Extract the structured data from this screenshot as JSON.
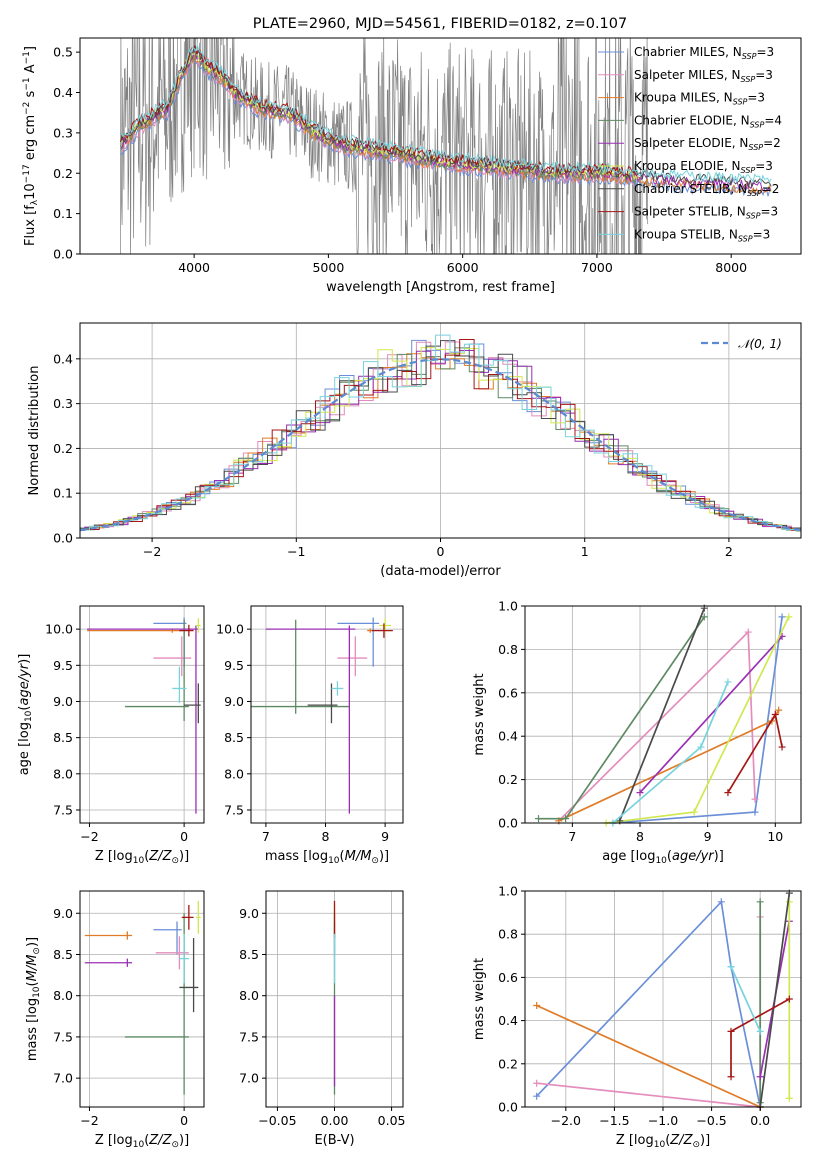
{
  "title": "PLATE=2960, MJD=54561, FIBERID=0182, z=0.107",
  "models": [
    {
      "name": "Chabrier MILES, N$_{SSP}$=3",
      "label": "Chabrier MILES, N",
      "nssp": "=3",
      "color": "#6a8fd8"
    },
    {
      "name": "Salpeter MILES, N$_{SSP}$=3",
      "label": "Salpeter MILES, N",
      "nssp": "=3",
      "color": "#e48cbc"
    },
    {
      "name": "Kroupa MILES, N$_{SSP}$=3",
      "label": "Kroupa MILES, N",
      "nssp": "=3",
      "color": "#e07b27"
    },
    {
      "name": "Chabrier ELODIE, N$_{SSP}$=4",
      "label": "Chabrier ELODIE, N",
      "nssp": "=4",
      "color": "#5d8a62"
    },
    {
      "name": "Salpeter ELODIE, N$_{SSP}$=2",
      "label": "Salpeter ELODIE, N",
      "nssp": "=2",
      "color": "#9a2fb4"
    },
    {
      "name": "Kroupa ELODIE, N$_{SSP}$=3",
      "label": "Kroupa ELODIE, N",
      "nssp": "=3",
      "color": "#cfe84e"
    },
    {
      "name": "Chabrier STELIB, N$_{SSP}$=2",
      "label": "Chabrier STELIB, N",
      "nssp": "=2",
      "color": "#4a4a4a"
    },
    {
      "name": "Salpeter STELIB, N$_{SSP}$=3",
      "label": "Salpeter STELIB, N",
      "nssp": "=3",
      "color": "#a51616"
    },
    {
      "name": "Kroupa STELIB, N$_{SSP}$=3",
      "label": "Kroupa STELIB, N",
      "nssp": "=3",
      "color": "#78d3dd"
    }
  ],
  "chart_data": [
    {
      "id": "spectrum",
      "type": "line",
      "xlabel": "wavelength [Angstrom, rest frame]",
      "ylabel": "Flux [f",
      "xlim": [
        3150,
        8520
      ],
      "ylim": [
        0,
        0.535
      ],
      "xticks": [
        4000,
        5000,
        6000,
        7000,
        8000
      ],
      "yticks": [
        0,
        0.1,
        0.2,
        0.3,
        0.4,
        0.5
      ],
      "ytick_labels": [
        "0.0",
        "0.1",
        "0.2",
        "0.3",
        "0.4",
        "0.5"
      ],
      "grid": false,
      "legend": "top-right",
      "data_color": "#808080",
      "model_x": [
        3450,
        3600,
        3700,
        3800,
        3900,
        4000,
        4100,
        4200,
        4300,
        4500,
        4700,
        4900,
        5100,
        5300,
        5500,
        5800,
        6100,
        6400,
        6700,
        7000,
        7300,
        7600,
        7900,
        8200,
        8300
      ],
      "model_y": [
        0.27,
        0.32,
        0.34,
        0.36,
        0.44,
        0.5,
        0.46,
        0.44,
        0.4,
        0.36,
        0.35,
        0.3,
        0.27,
        0.26,
        0.25,
        0.23,
        0.22,
        0.21,
        0.2,
        0.2,
        0.19,
        0.18,
        0.175,
        0.17,
        0.165
      ]
    },
    {
      "id": "residuals",
      "type": "histogram",
      "xlabel": "(data-model)/error",
      "ylabel": "Normed distribution",
      "xlim": [
        -2.5,
        2.5
      ],
      "ylim": [
        0,
        0.48
      ],
      "xticks": [
        -2,
        -1,
        0,
        1,
        2
      ],
      "xtick_labels": [
        "−2",
        "−1",
        "0",
        "1",
        "2"
      ],
      "yticks": [
        0,
        0.1,
        0.2,
        0.3,
        0.4
      ],
      "ytick_labels": [
        "0.0",
        "0.1",
        "0.2",
        "0.3",
        "0.4"
      ],
      "grid": true,
      "legend": "top-right",
      "reference": {
        "name": "𝒩(0, 1)",
        "color": "#5b8bd0",
        "mean": 0,
        "sigma": 1
      },
      "bin_width": 0.1
    },
    {
      "id": "age-vs-Z",
      "type": "errorbar",
      "xlabel": "Z [log",
      "ylabel": "age  [log",
      "xlim": [
        -2.2,
        0.42
      ],
      "ylim": [
        7.32,
        10.32
      ],
      "xticks": [
        -2,
        0
      ],
      "xtick_labels": [
        "−2",
        "0"
      ],
      "yticks": [
        7.5,
        8,
        8.5,
        9,
        9.5,
        10
      ],
      "ytick_labels": [
        "7.5",
        "8.0",
        "8.5",
        "9.0",
        "9.5",
        "10.0"
      ],
      "grid": true,
      "points": [
        {
          "model": 0,
          "x": 0.0,
          "xerr": [
            0.65,
            0.05
          ],
          "y": 10.08,
          "yerr": [
            0.6,
            0.08
          ]
        },
        {
          "model": 1,
          "x": -0.05,
          "xerr": [
            0.6,
            0.2
          ],
          "y": 9.6,
          "yerr": [
            0.25,
            0.3
          ]
        },
        {
          "model": 2,
          "x": -0.25,
          "xerr": [
            1.8,
            0.2
          ],
          "y": 9.98,
          "yerr": [
            0.03,
            0.03
          ]
        },
        {
          "model": 3,
          "x": 0.0,
          "xerr": [
            1.25,
            0.1
          ],
          "y": 8.93,
          "yerr": [
            0.2,
            1.2
          ]
        },
        {
          "model": 4,
          "x": 0.25,
          "xerr": [
            2.3,
            0.05
          ],
          "y": 10.0,
          "yerr": [
            2.55,
            0.05
          ]
        },
        {
          "model": 5,
          "x": 0.3,
          "xerr": [
            0.05,
            0.05
          ],
          "y": 10.05,
          "yerr": [
            0.1,
            0.1
          ]
        },
        {
          "model": 6,
          "x": 0.3,
          "xerr": [
            0.3,
            0.05
          ],
          "y": 8.95,
          "yerr": [
            0.25,
            0.3
          ]
        },
        {
          "model": 7,
          "x": 0.1,
          "xerr": [
            0.2,
            0.1
          ],
          "y": 9.98,
          "yerr": [
            0.08,
            0.08
          ]
        },
        {
          "model": 8,
          "x": -0.1,
          "xerr": [
            0.15,
            0.15
          ],
          "y": 9.18,
          "yerr": [
            0.2,
            0.3
          ]
        }
      ]
    },
    {
      "id": "age-vs-mass",
      "type": "errorbar",
      "xlabel": "mass [log",
      "ylabel": "",
      "xlim": [
        6.75,
        9.3
      ],
      "ylim": [
        7.32,
        10.32
      ],
      "xticks": [
        7,
        8,
        9
      ],
      "xtick_labels": [
        "7",
        "8",
        "9"
      ],
      "yticks": [
        7.5,
        8,
        8.5,
        9,
        9.5,
        10
      ],
      "ytick_labels": [
        "7.5",
        "8.0",
        "8.5",
        "9.0",
        "9.5",
        "10.0"
      ],
      "grid": true,
      "points": [
        {
          "model": 0,
          "x": 8.8,
          "xerr": [
            0.6,
            0.1
          ],
          "y": 10.08,
          "yerr": [
            0.6,
            0.08
          ]
        },
        {
          "model": 1,
          "x": 8.5,
          "xerr": [
            0.3,
            0.2
          ],
          "y": 9.6,
          "yerr": [
            0.25,
            0.3
          ]
        },
        {
          "model": 2,
          "x": 8.75,
          "xerr": [
            0.05,
            0.05
          ],
          "y": 9.98,
          "yerr": [
            0.03,
            0.03
          ]
        },
        {
          "model": 3,
          "x": 7.5,
          "xerr": [
            0.75,
            0.9
          ],
          "y": 8.93,
          "yerr": [
            0.1,
            1.2
          ]
        },
        {
          "model": 4,
          "x": 8.4,
          "xerr": [
            1.4,
            0.1
          ],
          "y": 10.0,
          "yerr": [
            2.55,
            0.05
          ]
        },
        {
          "model": 5,
          "x": 9.0,
          "xerr": [
            0.1,
            0.1
          ],
          "y": 10.05,
          "yerr": [
            0.1,
            0.1
          ]
        },
        {
          "model": 6,
          "x": 8.1,
          "xerr": [
            0.4,
            0.1
          ],
          "y": 8.95,
          "yerr": [
            0.25,
            0.3
          ]
        },
        {
          "model": 7,
          "x": 8.98,
          "xerr": [
            0.2,
            0.15
          ],
          "y": 9.98,
          "yerr": [
            0.1,
            0.1
          ]
        },
        {
          "model": 8,
          "x": 8.2,
          "xerr": [
            0.1,
            0.1
          ],
          "y": 9.18,
          "yerr": [
            0.1,
            0.1
          ]
        }
      ]
    },
    {
      "id": "weight-vs-age",
      "type": "line",
      "xlabel": "age  [log",
      "ylabel": "mass weight",
      "xlim": [
        6.3,
        10.38
      ],
      "ylim": [
        0,
        1.0
      ],
      "xticks": [
        7,
        8,
        9,
        10
      ],
      "xtick_labels": [
        "7",
        "8",
        "9",
        "10"
      ],
      "yticks": [
        0,
        0.2,
        0.4,
        0.6,
        0.8,
        1.0
      ],
      "ytick_labels": [
        "0.0",
        "0.2",
        "0.4",
        "0.6",
        "0.8",
        "1.0"
      ],
      "grid": true,
      "series": [
        {
          "model": 0,
          "x": [
            7.6,
            9.7,
            10.1
          ],
          "y": [
            0.0,
            0.05,
            0.95
          ]
        },
        {
          "model": 1,
          "x": [
            6.8,
            9.6,
            9.7
          ],
          "y": [
            0.01,
            0.88,
            0.11
          ]
        },
        {
          "model": 2,
          "x": [
            6.8,
            9.95,
            10.05
          ],
          "y": [
            0.01,
            0.47,
            0.52
          ]
        },
        {
          "model": 3,
          "x": [
            6.5,
            6.9,
            8.95
          ],
          "y": [
            0.02,
            0.02,
            0.95
          ]
        },
        {
          "model": 4,
          "x": [
            8.0,
            10.1
          ],
          "y": [
            0.14,
            0.86
          ]
        },
        {
          "model": 5,
          "x": [
            7.5,
            8.8,
            10.2
          ],
          "y": [
            0.0,
            0.05,
            0.95
          ]
        },
        {
          "model": 6,
          "x": [
            7.7,
            8.95
          ],
          "y": [
            0.01,
            0.99
          ]
        },
        {
          "model": 7,
          "x": [
            9.3,
            10.0,
            10.1
          ],
          "y": [
            0.14,
            0.5,
            0.35
          ]
        },
        {
          "model": 8,
          "x": [
            7.6,
            8.9,
            9.3
          ],
          "y": [
            0.0,
            0.35,
            0.65
          ]
        }
      ]
    },
    {
      "id": "mass-vs-Z",
      "type": "errorbar",
      "xlabel": "Z [log",
      "ylabel": "mass [log",
      "xlim": [
        -2.2,
        0.42
      ],
      "ylim": [
        6.65,
        9.27
      ],
      "xticks": [
        -2,
        0
      ],
      "xtick_labels": [
        "−2",
        "0"
      ],
      "yticks": [
        7.0,
        7.5,
        8.0,
        8.5,
        9.0
      ],
      "ytick_labels": [
        "7.0",
        "7.5",
        "8.0",
        "8.5",
        "9.0"
      ],
      "grid": true,
      "points": [
        {
          "model": 0,
          "x": -0.15,
          "xerr": [
            0.5,
            0.1
          ],
          "y": 8.8,
          "yerr": [
            0.3,
            0.1
          ]
        },
        {
          "model": 1,
          "x": -0.1,
          "xerr": [
            0.5,
            0.2
          ],
          "y": 8.52,
          "yerr": [
            0.2,
            0.2
          ]
        },
        {
          "model": 2,
          "x": -1.2,
          "xerr": [
            0.9,
            0.1
          ],
          "y": 8.73,
          "yerr": [
            0.05,
            0.05
          ]
        },
        {
          "model": 3,
          "x": 0.0,
          "xerr": [
            1.25,
            0.1
          ],
          "y": 7.5,
          "yerr": [
            0.7,
            1.5
          ]
        },
        {
          "model": 4,
          "x": -1.2,
          "xerr": [
            0.9,
            0.1
          ],
          "y": 8.4,
          "yerr": [
            0.05,
            0.05
          ]
        },
        {
          "model": 5,
          "x": 0.3,
          "xerr": [
            0.05,
            0.05
          ],
          "y": 8.95,
          "yerr": [
            0.2,
            0.2
          ]
        },
        {
          "model": 6,
          "x": 0.2,
          "xerr": [
            0.3,
            0.1
          ],
          "y": 8.1,
          "yerr": [
            0.3,
            0.6
          ]
        },
        {
          "model": 7,
          "x": 0.1,
          "xerr": [
            0.15,
            0.1
          ],
          "y": 8.95,
          "yerr": [
            0.15,
            0.15
          ]
        },
        {
          "model": 8,
          "x": 0.0,
          "xerr": [
            0.1,
            0.1
          ],
          "y": 8.45,
          "yerr": [
            0.3,
            0.3
          ]
        }
      ]
    },
    {
      "id": "mass-vs-EBV",
      "type": "errorbar",
      "xlabel": "E(B-V)",
      "ylabel": "",
      "xlim": [
        -0.06,
        0.06
      ],
      "ylim": [
        6.65,
        9.27
      ],
      "xticks": [
        -0.05,
        0,
        0.05
      ],
      "xtick_labels": [
        "−0.05",
        "0.00",
        "0.05"
      ],
      "yticks": [
        7.0,
        7.5,
        8.0,
        8.5,
        9.0
      ],
      "ytick_labels": [
        "7.0",
        "7.5",
        "8.0",
        "8.5",
        "9.0"
      ],
      "grid": true,
      "points": [
        {
          "model": 0,
          "x": 0,
          "xerr": [
            0,
            0
          ],
          "y": 8.8,
          "yerr": [
            0.3,
            0.1
          ]
        },
        {
          "model": 3,
          "x": 0,
          "xerr": [
            0,
            0
          ],
          "y": 7.5,
          "yerr": [
            0.7,
            1.5
          ]
        },
        {
          "model": 4,
          "x": 0,
          "xerr": [
            0,
            0
          ],
          "y": 7.8,
          "yerr": [
            0.9,
            0.2
          ]
        },
        {
          "model": 5,
          "x": 0,
          "xerr": [
            0,
            0
          ],
          "y": 8.9,
          "yerr": [
            0.2,
            0.2
          ]
        },
        {
          "model": 7,
          "x": 0,
          "xerr": [
            0,
            0
          ],
          "y": 8.95,
          "yerr": [
            0.25,
            0.2
          ]
        },
        {
          "model": 8,
          "x": 0,
          "xerr": [
            0,
            0
          ],
          "y": 8.45,
          "yerr": [
            0.3,
            0.3
          ]
        }
      ]
    },
    {
      "id": "weight-vs-Z",
      "type": "line",
      "xlabel": "Z [log",
      "ylabel": "mass weight",
      "xlim": [
        -2.42,
        0.42
      ],
      "ylim": [
        0,
        1.0
      ],
      "xticks": [
        -2.0,
        -1.5,
        -1.0,
        -0.5,
        0.0
      ],
      "xtick_labels": [
        "−2.0",
        "−1.5",
        "−1.0",
        "−0.5",
        "0.0"
      ],
      "yticks": [
        0,
        0.2,
        0.4,
        0.6,
        0.8,
        1.0
      ],
      "ytick_labels": [
        "0.0",
        "0.2",
        "0.4",
        "0.6",
        "0.8",
        "1.0"
      ],
      "grid": true,
      "series": [
        {
          "model": 0,
          "x": [
            -2.3,
            -0.4,
            -0.3,
            0.0
          ],
          "y": [
            0.05,
            0.95,
            0.65,
            0.0
          ]
        },
        {
          "model": 1,
          "x": [
            -2.3,
            0.0,
            0.0
          ],
          "y": [
            0.11,
            0.0,
            0.88
          ]
        },
        {
          "model": 2,
          "x": [
            -2.3,
            0.0
          ],
          "y": [
            0.47,
            0.0
          ]
        },
        {
          "model": 3,
          "x": [
            0.0,
            0.0
          ],
          "y": [
            0.02,
            0.95
          ]
        },
        {
          "model": 4,
          "x": [
            0.0,
            0.3
          ],
          "y": [
            0.14,
            0.86
          ]
        },
        {
          "model": 5,
          "x": [
            0.3,
            0.3
          ],
          "y": [
            0.04,
            0.95
          ]
        },
        {
          "model": 6,
          "x": [
            0.0,
            0.3
          ],
          "y": [
            0.0,
            0.99
          ]
        },
        {
          "model": 7,
          "x": [
            -0.3,
            -0.3,
            0.3
          ],
          "y": [
            0.14,
            0.35,
            0.5
          ]
        },
        {
          "model": 8,
          "x": [
            -0.3,
            0.0
          ],
          "y": [
            0.65,
            0.35
          ]
        }
      ]
    }
  ]
}
